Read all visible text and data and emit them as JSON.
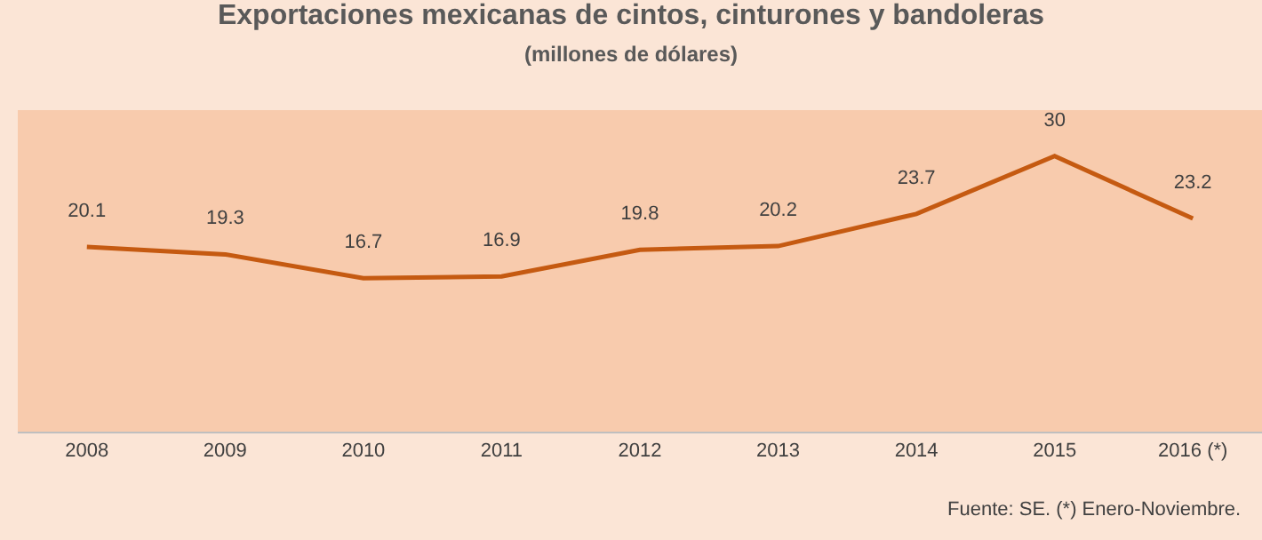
{
  "chart_data": {
    "type": "line",
    "title": "Exportaciones mexicanas de cintos, cinturones y bandoleras",
    "subtitle": "(millones de dólares)",
    "categories": [
      "2008",
      "2009",
      "2010",
      "2011",
      "2012",
      "2013",
      "2014",
      "2015",
      "2016 (*)"
    ],
    "series": [
      {
        "color": "#c55a11",
        "values": [
          20.1,
          19.3,
          16.7,
          16.9,
          19.8,
          20.2,
          23.7,
          30,
          23.2
        ]
      }
    ],
    "ylim": [
      0,
      35
    ],
    "data_labels": true,
    "tick_labels": "x",
    "grid": false,
    "marker": "none",
    "line_style": "solid",
    "annotations": [
      "Fuente: SE. (*) Enero-Noviembre."
    ]
  }
}
